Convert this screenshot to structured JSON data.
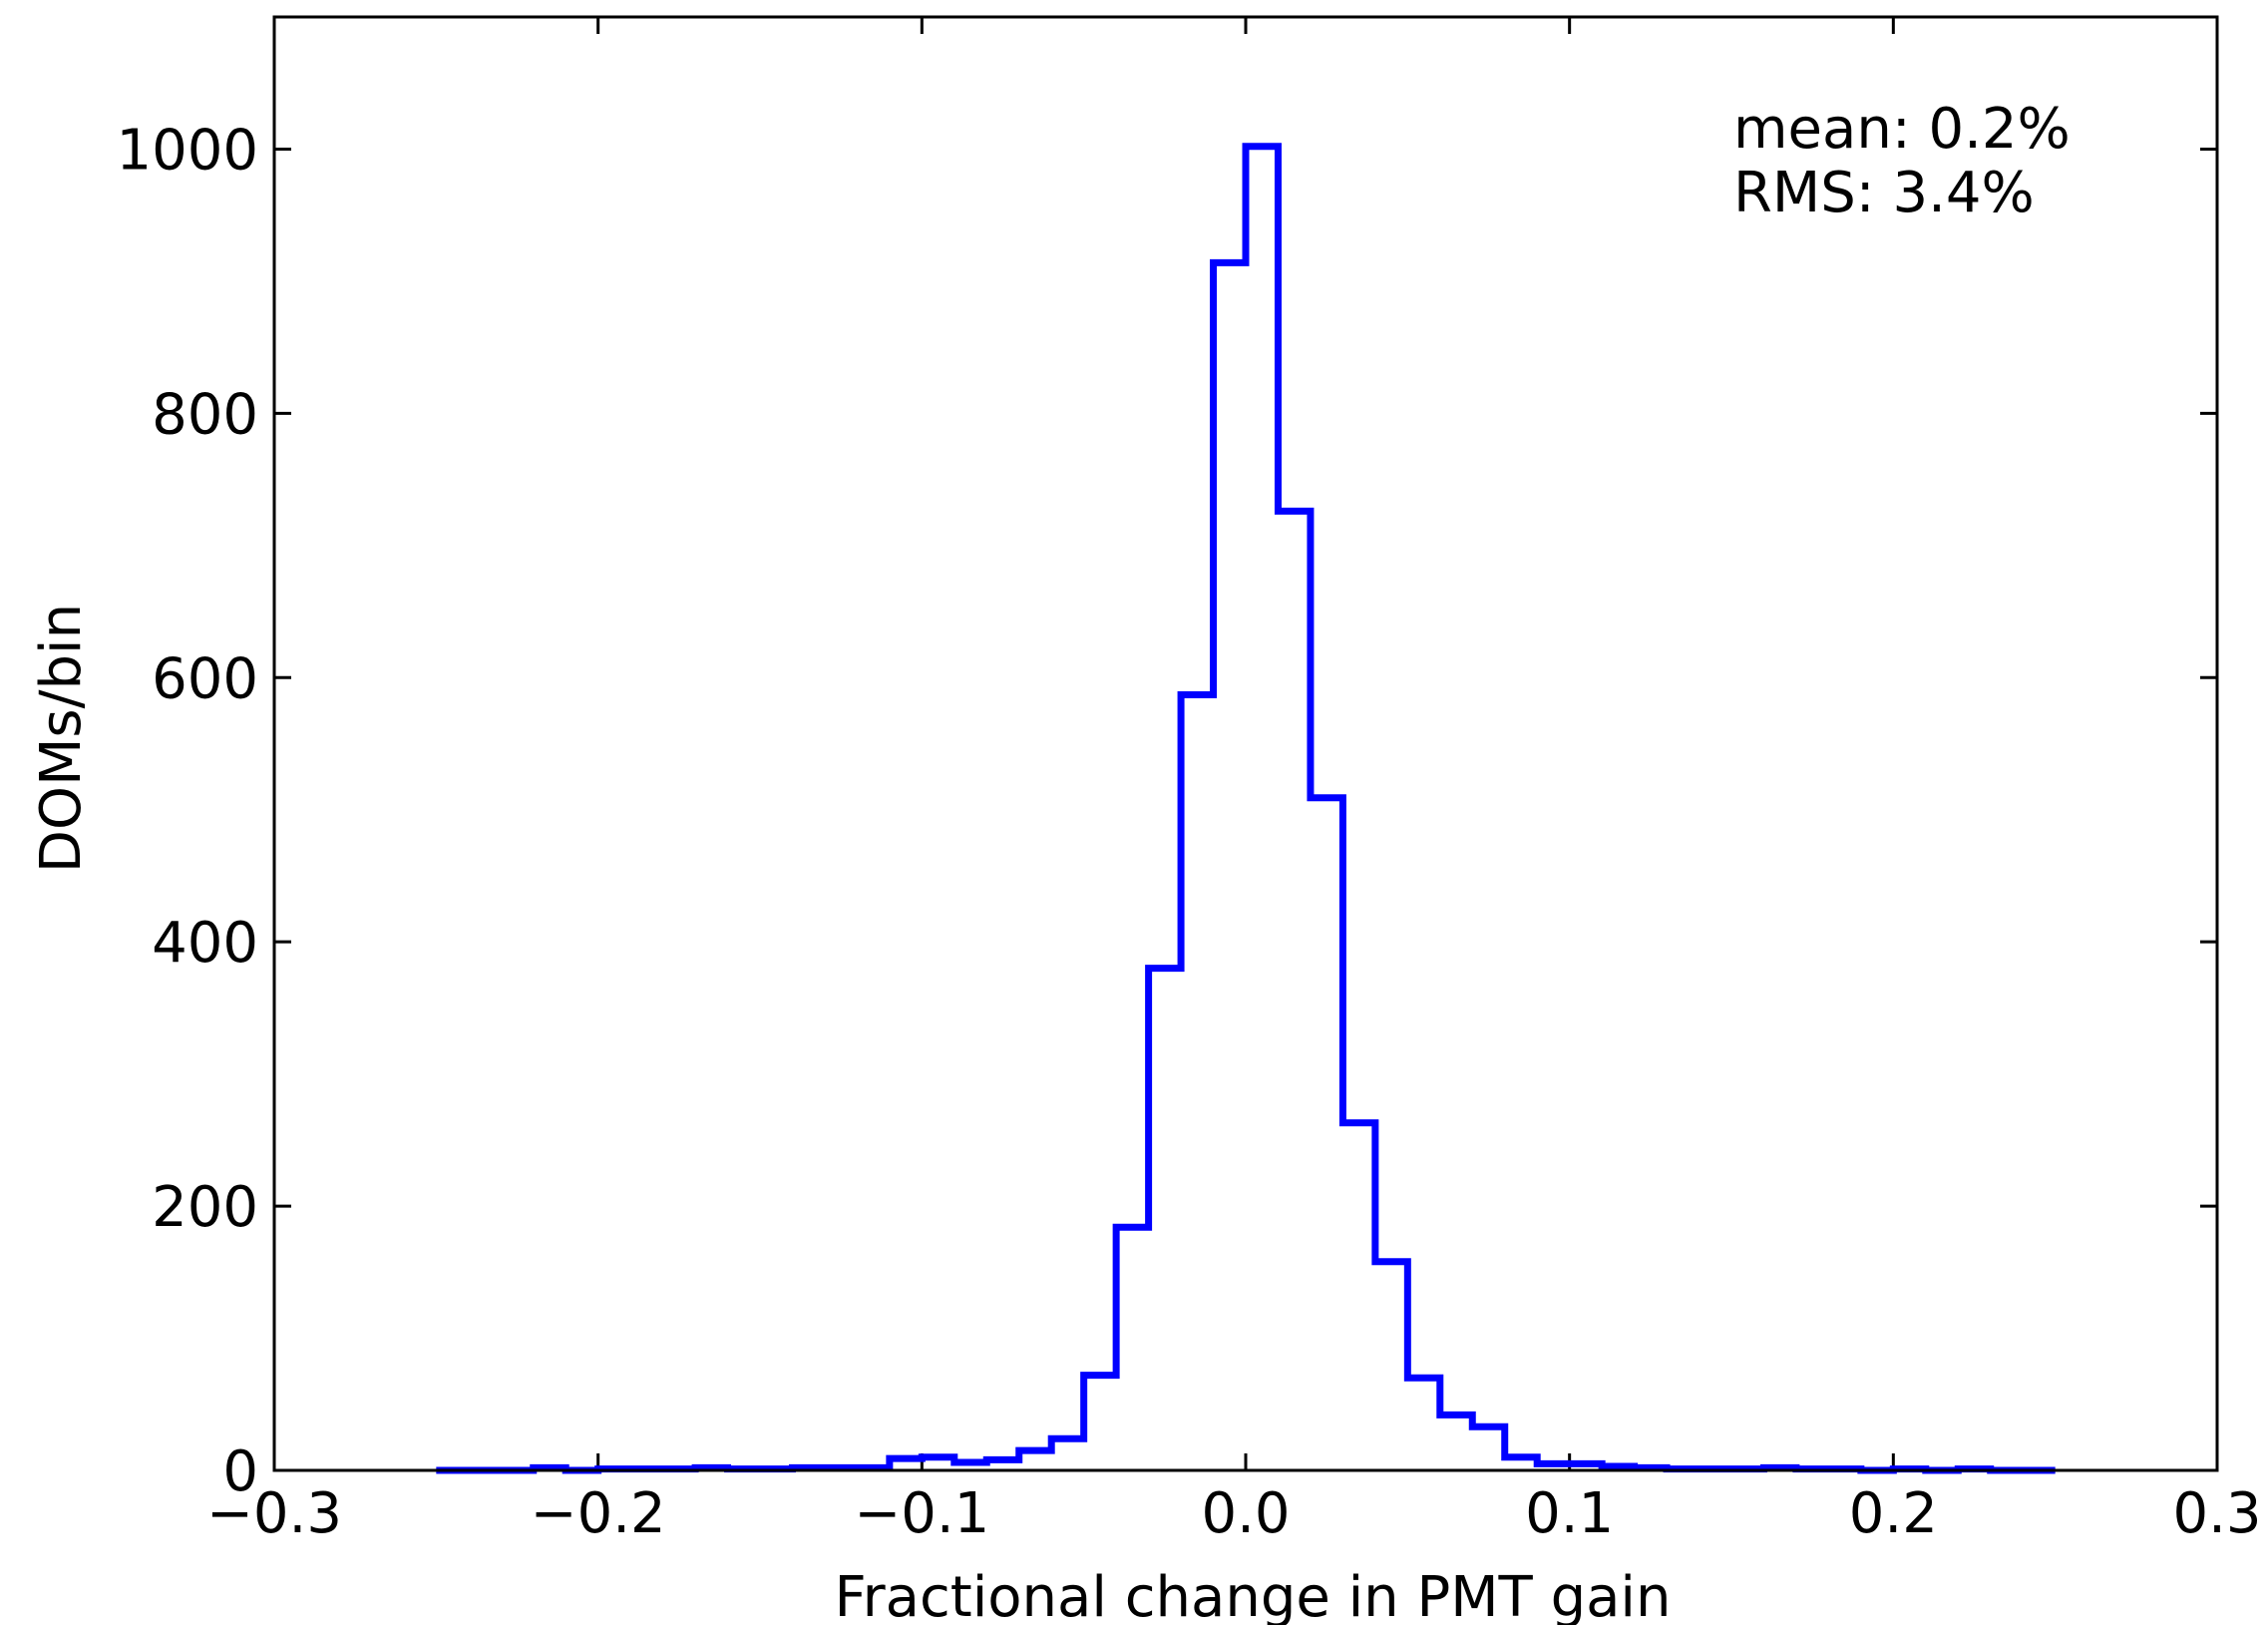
{
  "chart_data": {
    "type": "histogram",
    "xlabel": "Fractional change in PMT gain",
    "ylabel": "DOMs/bin",
    "xlim": [
      -0.3,
      0.3
    ],
    "ylim": [
      0,
      1100
    ],
    "xticks": [
      -0.3,
      -0.2,
      -0.1,
      0.0,
      0.1,
      0.2,
      0.3
    ],
    "xtick_labels": [
      "−0.3",
      "−0.2",
      "−0.1",
      "0.0",
      "0.1",
      "0.2",
      "0.3"
    ],
    "yticks": [
      0,
      200,
      400,
      600,
      800,
      1000
    ],
    "ytick_labels": [
      "0",
      "200",
      "400",
      "600",
      "800",
      "1000"
    ],
    "grid": false,
    "line_color": "#0000ff",
    "annotations": [
      "mean: 0.2%",
      "RMS: 3.4%"
    ],
    "bins": {
      "edges": [
        -0.25,
        -0.24,
        -0.23,
        -0.22,
        -0.21,
        -0.2,
        -0.19,
        -0.18,
        -0.17,
        -0.16,
        -0.15,
        -0.14,
        -0.13,
        -0.12,
        -0.11,
        -0.1,
        -0.09,
        -0.08,
        -0.07,
        -0.06,
        -0.05,
        -0.04,
        -0.03,
        -0.02,
        -0.01,
        0.0,
        0.01,
        0.02,
        0.03,
        0.04,
        0.05,
        0.06,
        0.07,
        0.08,
        0.09,
        0.1,
        0.11,
        0.12,
        0.13,
        0.14,
        0.15,
        0.16,
        0.17,
        0.18,
        0.19,
        0.2,
        0.21,
        0.22,
        0.23,
        0.24,
        0.25
      ],
      "counts": [
        0,
        0,
        0,
        2,
        0,
        1,
        1,
        1,
        2,
        1,
        1,
        2,
        2,
        2,
        9,
        10,
        6,
        8,
        15,
        24,
        72,
        184,
        380,
        587,
        914,
        1002,
        726,
        509,
        263,
        158,
        70,
        42,
        33,
        10,
        5,
        5,
        3,
        2,
        1,
        1,
        1,
        2,
        1,
        1,
        0,
        1,
        0,
        1,
        0,
        0
      ]
    }
  }
}
